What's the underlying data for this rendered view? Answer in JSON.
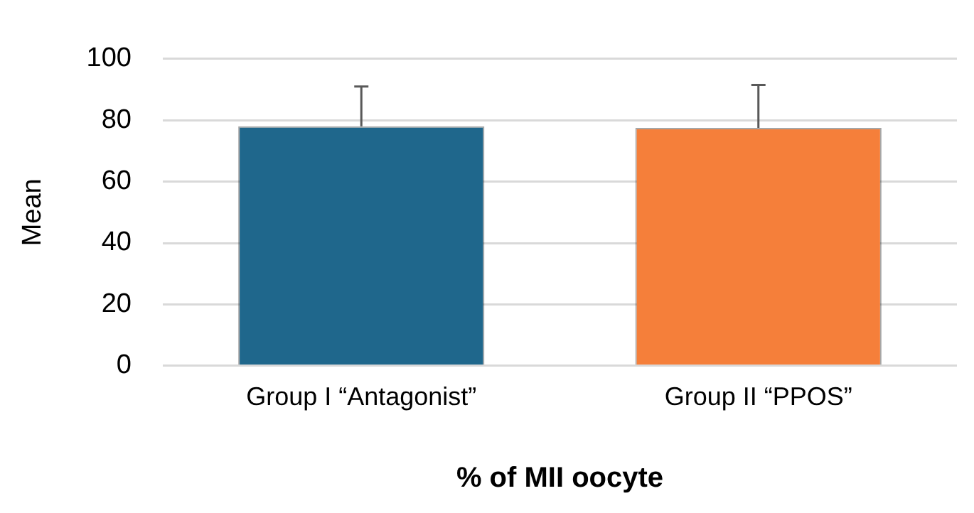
{
  "chart_data": {
    "type": "bar",
    "xlabel": "% of MII oocyte",
    "ylabel": "Mean",
    "categories": [
      "Group I “Antagonist”",
      "Group II “PPOS”"
    ],
    "values": [
      78,
      77.5
    ],
    "colors": [
      "#1f678c",
      "#f57f3a"
    ],
    "errors": [
      [
        78,
        91
      ],
      [
        77.5,
        91.5
      ]
    ],
    "ylim": [
      0,
      100
    ],
    "yticks": [
      0,
      20,
      40,
      60,
      80,
      100
    ],
    "grid": "y",
    "legend": false
  }
}
